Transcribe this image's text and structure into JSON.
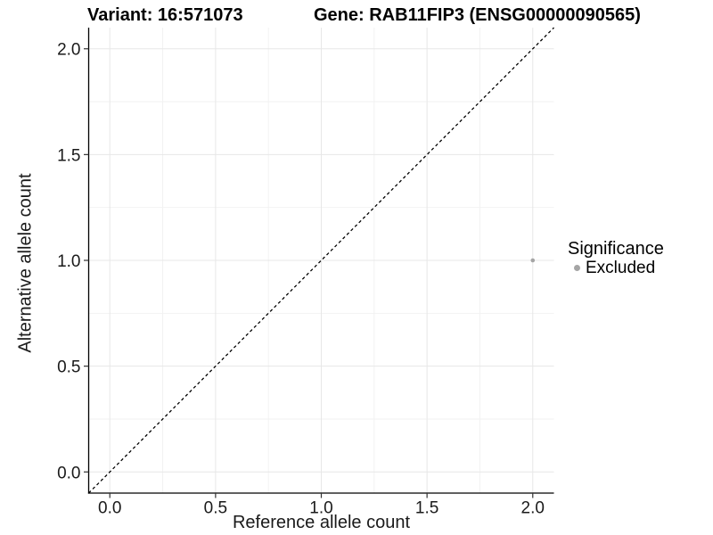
{
  "chart_data": {
    "type": "scatter",
    "title_left": "Variant: 16:571073",
    "title_right": "Gene: RAB11FIP3 (ENSG00000090565)",
    "xlabel": "Reference allele count",
    "ylabel": "Alternative allele count",
    "xlim": [
      -0.1,
      2.1
    ],
    "ylim": [
      -0.1,
      2.1
    ],
    "x_tick_values": [
      0,
      0.5,
      1,
      1.5,
      2
    ],
    "x_tick_labels": [
      "0.0",
      "0.5",
      "1.0",
      "1.5",
      "2.0"
    ],
    "y_tick_values": [
      0,
      0.5,
      1,
      1.5,
      2
    ],
    "y_tick_labels": [
      "0.0",
      "0.5",
      "1.0",
      "1.5",
      "2.0"
    ],
    "grid": "major+minor",
    "identity_line": {
      "style": "dashed",
      "color": "#000000",
      "from": [
        -0.1,
        -0.1
      ],
      "to": [
        2.1,
        2.1
      ]
    },
    "series": [
      {
        "name": "Excluded",
        "color": "#a5a5a5",
        "point_radius": 2.3,
        "points": [
          {
            "x": 2.0,
            "y": 1.0
          }
        ]
      }
    ],
    "legend": {
      "title": "Significance",
      "position": "right",
      "items": [
        {
          "label": "Excluded",
          "color": "#a5a5a5",
          "marker": "circle-icon"
        }
      ]
    },
    "colors": {
      "background": "#ffffff",
      "major_grid": "#e7e7e7",
      "minor_grid": "#f2f2f2",
      "axis_line": "#000000",
      "tick_mark": "#333333",
      "tick_label": "#1a1a1a",
      "axis_title": "#1a1a1a",
      "plot_title": "#000000"
    }
  }
}
